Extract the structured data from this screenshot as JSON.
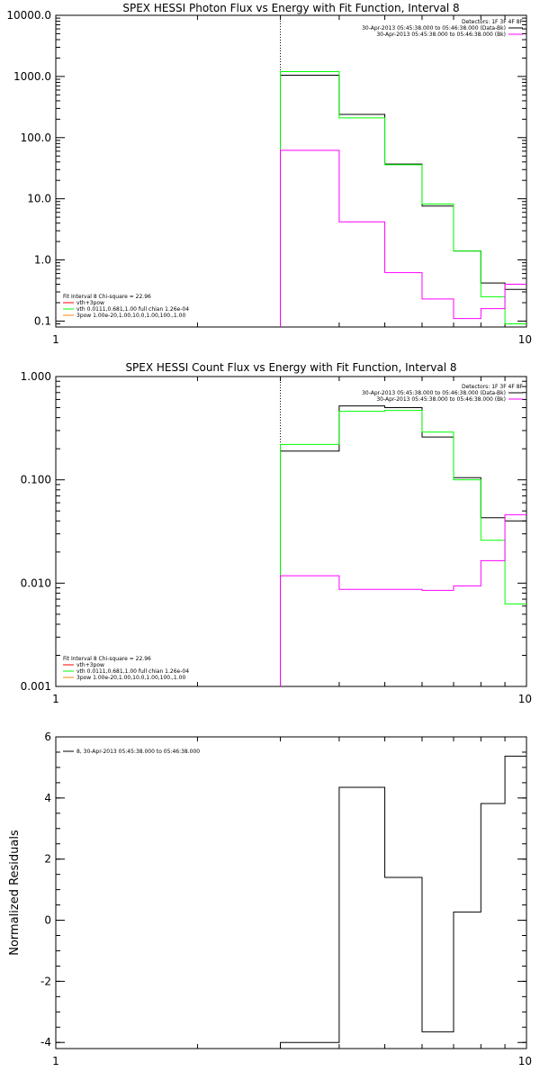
{
  "chart_data": [
    {
      "id": "photon",
      "type": "line",
      "title": "SPEX HESSI Photon Flux vs Energy with Fit Function, Interval 8",
      "xlabel": "",
      "ylabel": "",
      "xscale": "log",
      "yscale": "log",
      "xlim": [
        1,
        10
      ],
      "ylim": [
        0.08,
        10000
      ],
      "x_ticks": [
        1,
        10
      ],
      "x_tick_labels": [
        "1",
        "10"
      ],
      "y_ticks": [
        0.1,
        1,
        10,
        100,
        1000,
        10000
      ],
      "y_tick_labels": [
        "0.1",
        "1.0",
        "10.0",
        "100.0",
        "1000.0",
        "10000.0"
      ],
      "bin_edges": [
        3,
        4,
        5,
        6,
        7,
        8,
        9,
        10
      ],
      "vline": 3,
      "legend_right": {
        "placement": "top-right",
        "entries": [
          {
            "text": "Detectors: 1F 3F 4F 8F",
            "color": ""
          },
          {
            "text": "30-Apr-2013 05:45:38.000 to 05:46:38.000 (Data-Bk)",
            "color": "#000000"
          },
          {
            "text": "30-Apr-2013 05:45:38.000 to 05:46:38.000 (Bk)",
            "color": "#ff00ff"
          }
        ]
      },
      "legend_left": {
        "placement": "bottom-left",
        "entries": [
          {
            "text": "Fit Interval 8   Chi-square = 22.96",
            "color": ""
          },
          {
            "text": "vth+3pow",
            "color": "#ff0000"
          },
          {
            "text": "vth 0.0111,0.681,1.00  full chian 1.26e-04",
            "color": "#00ff00"
          },
          {
            "text": "3pow 1.00e-20,1.00,10.0,1.00,100.,1.00",
            "color": "#ff8800"
          }
        ]
      },
      "series": [
        {
          "name": "30-Apr-2013 05:45:38.000 to 05:46:38.000 (Data-Bk)",
          "color": "#000000",
          "values": [
            1050,
            240,
            37,
            7.6,
            1.4,
            0.42,
            0.33
          ]
        },
        {
          "name": "vth 0.0111,0.681,1.00  full chian 1.26e-04",
          "color": "#00ff00",
          "values": [
            1200,
            210,
            36,
            8.2,
            1.4,
            0.25,
            0.09
          ]
        },
        {
          "name": "30-Apr-2013 05:45:38.000 to 05:46:38.000 (Bk)",
          "color": "#ff00ff",
          "values": [
            62,
            4.2,
            0.62,
            0.23,
            0.11,
            0.16,
            0.4
          ]
        }
      ]
    },
    {
      "id": "count",
      "type": "line",
      "title": "SPEX HESSI Count Flux vs Energy with Fit Function, Interval 8",
      "xlabel": "",
      "ylabel": "",
      "xscale": "log",
      "yscale": "log",
      "xlim": [
        1,
        10
      ],
      "ylim": [
        0.001,
        1
      ],
      "x_ticks": [
        1,
        10
      ],
      "x_tick_labels": [
        "1",
        "10"
      ],
      "y_ticks": [
        0.001,
        0.01,
        0.1,
        1
      ],
      "y_tick_labels": [
        "0.001",
        "0.010",
        "0.100",
        "1.000"
      ],
      "bin_edges": [
        3,
        4,
        5,
        6,
        7,
        8,
        9,
        10
      ],
      "vline": 3,
      "legend_right": {
        "placement": "top-right",
        "entries": [
          {
            "text": "Detectors: 1F 3F 4F 8F",
            "color": ""
          },
          {
            "text": "30-Apr-2013 05:45:38.000 to 05:46:38.000 (Data-Bk)",
            "color": "#000000"
          },
          {
            "text": "30-Apr-2013 05:45:38.000 to 05:46:38.000 (Bk)",
            "color": "#ff00ff"
          }
        ]
      },
      "legend_left": {
        "placement": "bottom-left",
        "entries": [
          {
            "text": "Fit Interval 8   Chi-square = 22.96",
            "color": ""
          },
          {
            "text": "vth+3pow",
            "color": "#ff0000"
          },
          {
            "text": "vth 0.0111,0.681,1.00  full chian 1.26e-04",
            "color": "#00ff00"
          },
          {
            "text": "3pow 1.00e-20,1.00,10.0,1.00,100.,1.00",
            "color": "#ff8800"
          }
        ]
      },
      "series": [
        {
          "name": "30-Apr-2013 05:45:38.000 to 05:46:38.000 (Data-Bk)",
          "color": "#000000",
          "values": [
            0.19,
            0.52,
            0.5,
            0.26,
            0.105,
            0.043,
            0.04
          ]
        },
        {
          "name": "vth 0.0111,0.681,1.00  full chian 1.26e-04",
          "color": "#00ff00",
          "values": [
            0.22,
            0.46,
            0.47,
            0.29,
            0.1,
            0.026,
            0.0063
          ]
        },
        {
          "name": "30-Apr-2013 05:45:38.000 to 05:46:38.000 (Bk)",
          "color": "#ff00ff",
          "values": [
            0.0118,
            0.0087,
            0.0087,
            0.0085,
            0.0094,
            0.0165,
            0.046
          ]
        }
      ]
    },
    {
      "id": "resid",
      "type": "line",
      "title": "",
      "xlabel": "",
      "ylabel": "Normalized Residuals",
      "xscale": "log",
      "yscale": "linear",
      "xlim": [
        1,
        10
      ],
      "ylim": [
        -4.2,
        6
      ],
      "x_ticks": [
        1,
        10
      ],
      "x_tick_labels": [
        "1",
        "10"
      ],
      "y_ticks": [
        -4,
        -2,
        0,
        2,
        4,
        6
      ],
      "y_tick_labels": [
        "-4",
        "-2",
        "0",
        "2",
        "4",
        "6"
      ],
      "bin_edges": [
        3,
        4,
        5,
        6,
        7,
        8,
        9,
        10
      ],
      "legend_left": {
        "placement": "top-left",
        "entries": [
          {
            "text": "8, 30-Apr-2013 05:45:38.000 to 05:46:38.000",
            "color": "#000000"
          }
        ]
      },
      "series": [
        {
          "name": "8, 30-Apr-2013 05:45:38.000 to 05:46:38.000",
          "color": "#000000",
          "values": [
            -4.0,
            4.35,
            1.4,
            -3.65,
            0.27,
            3.82,
            5.37
          ]
        }
      ]
    }
  ]
}
